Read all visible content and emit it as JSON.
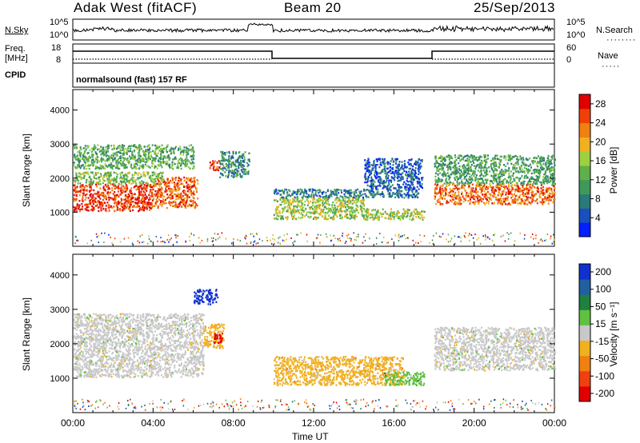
{
  "header": {
    "radar": "Adak West (fitACF)",
    "beam": "Beam 20",
    "date": "25/Sep/2013"
  },
  "status_panels": {
    "nsky_label": "N.Sky",
    "nsky_ticks": [
      "10^5",
      "10^0"
    ],
    "nsearch_label": "N.Search",
    "nsearch_ticks": [
      "10^5",
      "10^0"
    ],
    "freq_label": "Freq.",
    "freq_unit": "[MHz]",
    "freq_ticks": [
      "18",
      "8"
    ],
    "nave_label": "Nave",
    "nave_ticks": [
      "60",
      "0"
    ],
    "cpid_label": "CPID",
    "cpid_value": "normalsound (fast) 157 RF"
  },
  "chart_data": [
    {
      "type": "heatmap",
      "name": "power",
      "ylabel": "Slant Range [km]",
      "yticks": [
        "1000",
        "2000",
        "3000",
        "4000"
      ],
      "ylim": [
        0,
        4600
      ],
      "xlim": [
        0,
        24
      ],
      "colorbar_label": "Power [dB]",
      "colorbar_ticks": [
        "4",
        "8",
        "12",
        "16",
        "20",
        "24",
        "28"
      ],
      "colorbar_range": [
        0,
        30
      ],
      "colorbar_colors": [
        "#0020ff",
        "#1a4fc0",
        "#2a7a7a",
        "#3f9a5a",
        "#5fb04a",
        "#9fd040",
        "#f0b020",
        "#f08010",
        "#f04008",
        "#e00000"
      ],
      "features": [
        {
          "t0": 0.0,
          "t1": 4.0,
          "r0": 1050,
          "r1": 1850,
          "power": 26
        },
        {
          "t0": 4.0,
          "t1": 6.2,
          "r0": 1150,
          "r1": 2050,
          "power": 24
        },
        {
          "t0": 0.0,
          "t1": 4.5,
          "r0": 1850,
          "r1": 2200,
          "power": 14
        },
        {
          "t0": 0.0,
          "t1": 6.0,
          "r0": 2300,
          "r1": 3000,
          "power": 12
        },
        {
          "t0": 6.8,
          "t1": 7.4,
          "r0": 2250,
          "r1": 2550,
          "power": 26
        },
        {
          "t0": 7.3,
          "t1": 8.8,
          "r0": 2050,
          "r1": 2800,
          "power": 9
        },
        {
          "t0": 10.0,
          "t1": 14.5,
          "r0": 820,
          "r1": 1450,
          "power": 16
        },
        {
          "t0": 14.5,
          "t1": 17.5,
          "r0": 800,
          "r1": 1120,
          "power": 16
        },
        {
          "t0": 10.0,
          "t1": 17.2,
          "r0": 1450,
          "r1": 1700,
          "power": 7
        },
        {
          "t0": 14.5,
          "t1": 17.4,
          "r0": 1700,
          "r1": 2600,
          "power": 5
        },
        {
          "t0": 18.0,
          "t1": 24.0,
          "r0": 1250,
          "r1": 1850,
          "power": 24
        },
        {
          "t0": 18.0,
          "t1": 24.0,
          "r0": 1850,
          "r1": 2700,
          "power": 11
        }
      ]
    },
    {
      "type": "heatmap",
      "name": "velocity",
      "ylabel": "Slant Range [km]",
      "yticks": [
        "1000",
        "2000",
        "3000",
        "4000"
      ],
      "ylim": [
        0,
        4600
      ],
      "xlim": [
        0,
        24
      ],
      "xticks": [
        "00:00",
        "04:00",
        "08:00",
        "12:00",
        "16:00",
        "20:00",
        "00:00"
      ],
      "xlabel": "Time UT",
      "colorbar_label": "Velocity [m s⁻¹]",
      "colorbar_ticks": [
        "200",
        "100",
        "50",
        "15",
        "-15",
        "-50",
        "-100",
        "-200"
      ],
      "colorbar_range": [
        -250,
        250
      ],
      "colorbar_colors": [
        "#e00000",
        "#f04010",
        "#f08010",
        "#f0b020",
        "#c8c8c8",
        "#60c040",
        "#208040",
        "#2060a0",
        "#1030d0"
      ],
      "features": [
        {
          "t0": 0.0,
          "t1": 6.5,
          "r0": 1050,
          "r1": 2900,
          "velocity": 0
        },
        {
          "t0": 6.5,
          "t1": 7.5,
          "r0": 1900,
          "r1": 2600,
          "velocity": -60
        },
        {
          "t0": 7.0,
          "t1": 7.5,
          "r0": 2050,
          "r1": 2350,
          "velocity": -220
        },
        {
          "t0": 6.0,
          "t1": 7.2,
          "r0": 3150,
          "r1": 3600,
          "velocity": 220
        },
        {
          "t0": 10.0,
          "t1": 16.5,
          "r0": 820,
          "r1": 1650,
          "velocity": -45
        },
        {
          "t0": 15.5,
          "t1": 17.5,
          "r0": 820,
          "r1": 1200,
          "velocity": 45
        },
        {
          "t0": 18.0,
          "t1": 24.0,
          "r0": 1250,
          "r1": 2500,
          "velocity": 0
        }
      ]
    }
  ]
}
